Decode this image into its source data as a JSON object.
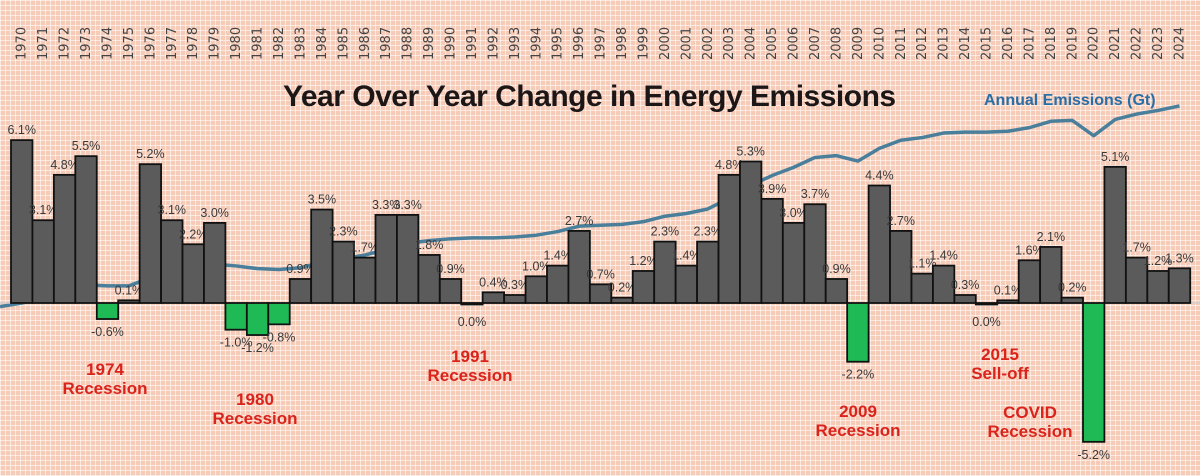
{
  "chart_data": {
    "type": "bar",
    "title": "Year Over Year Change in Energy Emissions",
    "categories": [
      "1970",
      "1971",
      "1972",
      "1973",
      "1974",
      "1975",
      "1976",
      "1977",
      "1978",
      "1979",
      "1980",
      "1981",
      "1982",
      "1983",
      "1984",
      "1985",
      "1986",
      "1987",
      "1988",
      "1989",
      "1990",
      "1991",
      "1992",
      "1993",
      "1994",
      "1995",
      "1996",
      "1997",
      "1998",
      "1999",
      "2000",
      "2001",
      "2002",
      "2003",
      "2004",
      "2005",
      "2006",
      "2007",
      "2008",
      "2009",
      "2010",
      "2011",
      "2012",
      "2013",
      "2014",
      "2015",
      "2016",
      "2017",
      "2018",
      "2019",
      "2020",
      "2021",
      "2022",
      "2023",
      "2024"
    ],
    "values": [
      6.1,
      3.1,
      4.8,
      5.5,
      -0.6,
      0.1,
      5.2,
      3.1,
      2.2,
      3.0,
      -1.0,
      -1.2,
      -0.8,
      0.9,
      3.5,
      2.3,
      1.7,
      3.3,
      3.3,
      1.8,
      0.9,
      0.0,
      0.4,
      0.3,
      1.0,
      1.4,
      2.7,
      0.7,
      0.2,
      1.2,
      2.3,
      1.4,
      2.3,
      4.8,
      5.3,
      3.9,
      3.0,
      3.7,
      0.9,
      -2.2,
      4.4,
      2.7,
      1.1,
      1.4,
      0.3,
      0.0,
      0.1,
      1.6,
      2.1,
      0.2,
      -5.2,
      5.1,
      1.7,
      1.2,
      1.3
    ],
    "value_labels": [
      "6.1%",
      "3.1%",
      "4.8%",
      "5.5%",
      "-0.6%",
      "0.1%",
      "5.2%",
      "3.1%",
      "2.2%",
      "3.0%",
      "-1.0%",
      "-1.2%",
      "-0.8%",
      "0.9%",
      "3.5%",
      "2.3%",
      "1.7%",
      "3.3%",
      "3.3%",
      "1.8%",
      "0.9%",
      "0.0%",
      "0.4%",
      "0.3%",
      "1.0%",
      "1.4%",
      "2.7%",
      "0.7%",
      "0.2%",
      "1.2%",
      "2.3%",
      "1.4%",
      "2.3%",
      "4.8%",
      "5.3%",
      "3.9%",
      "3.0%",
      "3.7%",
      "0.9%",
      "-2.2%",
      "4.4%",
      "2.7%",
      "1.1%",
      "1.4%",
      "0.3%",
      "0.0%",
      "0.1%",
      "1.6%",
      "2.1%",
      "0.2%",
      "-5.2%",
      "5.1%",
      "1.7%",
      "1.2%",
      "1.3%"
    ],
    "unit": "%",
    "line_series": {
      "name": "Annual Emissions (Gt)",
      "values": [
        15.0,
        15.5,
        16.2,
        17.0,
        16.9,
        16.9,
        17.8,
        18.3,
        18.7,
        19.3,
        19.1,
        18.8,
        18.7,
        18.9,
        19.5,
        19.9,
        20.3,
        20.9,
        21.6,
        21.9,
        22.1,
        22.2,
        22.2,
        22.3,
        22.5,
        22.9,
        23.5,
        23.6,
        23.7,
        24.0,
        24.6,
        24.9,
        25.4,
        26.6,
        28.0,
        29.1,
        30.0,
        31.1,
        31.3,
        30.7,
        32.1,
        33.0,
        33.3,
        33.8,
        33.9,
        33.9,
        34.0,
        34.4,
        35.1,
        35.2,
        33.5,
        35.3,
        35.9,
        36.3,
        36.8
      ]
    },
    "annotations": [
      {
        "year": "1974",
        "line1": "1974",
        "line2": "Recession"
      },
      {
        "year": "1981",
        "line1": "1980",
        "line2": "Recession"
      },
      {
        "year": "1991",
        "line1": "1991",
        "line2": "Recession"
      },
      {
        "year": "2009",
        "line1": "2009",
        "line2": "Recession"
      },
      {
        "year": "2015",
        "line1": "2015",
        "line2": "Sell-off"
      },
      {
        "year": "2020",
        "line1": "COVID",
        "line2": "Recession"
      }
    ],
    "grid": true,
    "legend": "top-right",
    "colors": {
      "positive": "#5b5b5b",
      "negative": "#1fba55",
      "line": "#4a7f9c",
      "line_label": "#2a6ea6",
      "annotation": "#d9231b",
      "background": "#f6cbb8"
    }
  }
}
